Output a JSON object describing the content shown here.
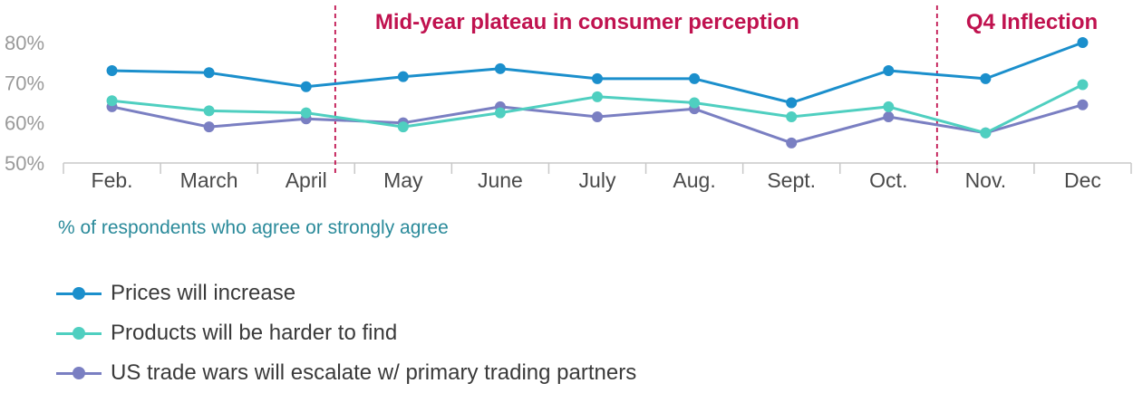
{
  "chart_data": {
    "type": "line",
    "categories": [
      "Feb.",
      "March",
      "April",
      "May",
      "June",
      "July",
      "Aug.",
      "Sept.",
      "Oct.",
      "Nov.",
      "Dec"
    ],
    "series": [
      {
        "name": "Prices will increase",
        "color": "#1b8fcc",
        "values": [
          73,
          72.5,
          69,
          71.5,
          73.5,
          71,
          71,
          65,
          73,
          71,
          80
        ]
      },
      {
        "name": "Products will be harder to find",
        "color": "#4fcfc0",
        "values": [
          65.5,
          63,
          62.5,
          59,
          62.5,
          66.5,
          65,
          61.5,
          64,
          57.5,
          69.5
        ]
      },
      {
        "name": "US trade wars will escalate w/ primary trading partners",
        "color": "#7a7fc2",
        "values": [
          64,
          59,
          61,
          60,
          64,
          61.5,
          63.5,
          55,
          61.5,
          57.5,
          64.5
        ]
      }
    ],
    "ylim": [
      50,
      80
    ],
    "yticks": [
      "50%",
      "60%",
      "70%",
      "80%"
    ],
    "ylabel": "% of respondents who agree or strongly agree",
    "annotations": [
      {
        "text": "Mid-year plateau in consumer perception",
        "x": 2.3,
        "color": "#c0124f"
      },
      {
        "text": "Q4 Inflection",
        "x": 8.5,
        "color": "#c0124f"
      }
    ],
    "vlines": [
      2.3,
      8.5
    ],
    "legend_position": "bottom-left",
    "grid": false
  }
}
